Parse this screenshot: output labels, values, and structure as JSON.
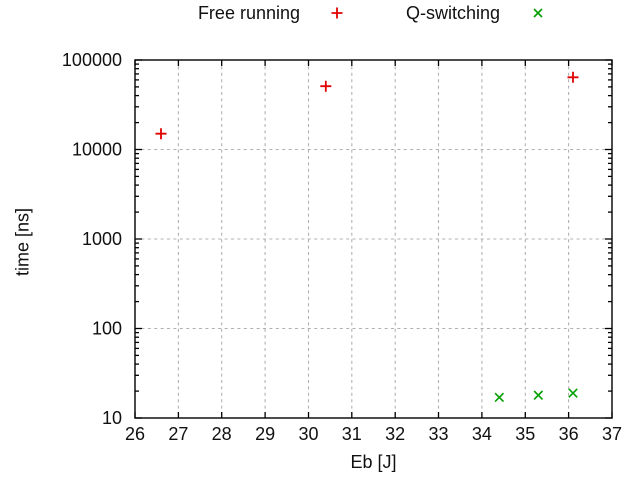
{
  "legend": {
    "position": "top-center",
    "entries": [
      {
        "label": "Free running",
        "marker": "plus",
        "color": "#e00000"
      },
      {
        "label": "Q-switching",
        "marker": "times",
        "color": "#00a000"
      }
    ]
  },
  "chart_data": {
    "type": "scatter",
    "title": "",
    "xlabel": "Eb [J]",
    "ylabel": "time [ns]",
    "x_axis": {
      "scale": "linear",
      "min": 26,
      "max": 37,
      "ticks": [
        26,
        27,
        28,
        29,
        30,
        31,
        32,
        33,
        34,
        35,
        36,
        37
      ]
    },
    "y_axis": {
      "scale": "log",
      "min": 10,
      "max": 100000,
      "ticks": [
        10,
        100,
        1000,
        10000,
        100000
      ],
      "tick_labels": [
        "10",
        "100",
        "1000",
        "10000",
        "100000"
      ],
      "minor_ticks": true
    },
    "grid": {
      "show": true,
      "style": "dashed",
      "color": "#b0b0b0"
    },
    "series": [
      {
        "name": "Free running",
        "marker": "plus",
        "color": "#e00000",
        "points": [
          {
            "x": 26.6,
            "y": 15000
          },
          {
            "x": 30.4,
            "y": 51000
          },
          {
            "x": 36.1,
            "y": 64000
          }
        ]
      },
      {
        "name": "Q-switching",
        "marker": "times",
        "color": "#00a000",
        "points": [
          {
            "x": 34.4,
            "y": 17
          },
          {
            "x": 35.3,
            "y": 18
          },
          {
            "x": 36.1,
            "y": 19
          }
        ]
      }
    ]
  },
  "frame": {
    "background": "#ffffff",
    "border_color": "#000000",
    "text_color": "#111111"
  }
}
